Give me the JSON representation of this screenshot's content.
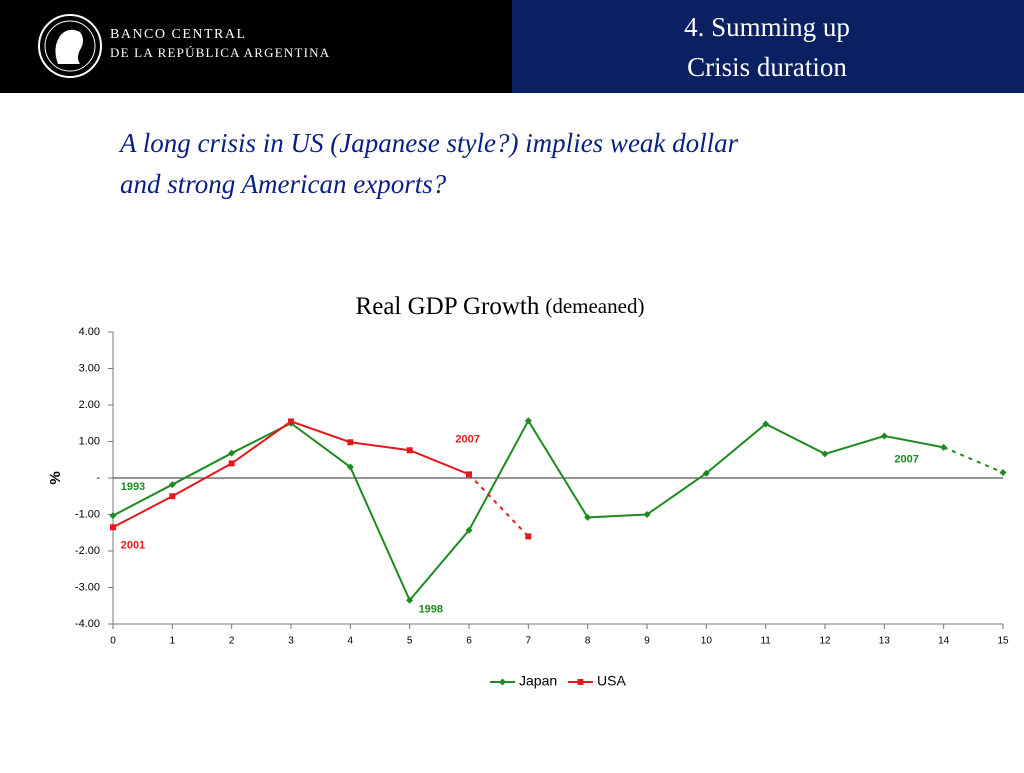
{
  "header": {
    "bank_line1": "BANCO CENTRAL",
    "bank_line2": "DE LA REPÚBLICA ARGENTINA",
    "section": "4. Summing up",
    "section_sub": "Crisis duration"
  },
  "lead": {
    "line1": "A long crisis in US (Japanese style?) implies weak dollar",
    "line2": "and strong American exports?"
  },
  "chart_data": {
    "type": "line",
    "title": "Real GDP Growth",
    "subtitle": "(demeaned)",
    "y_label": "%",
    "x": [
      0,
      1,
      2,
      3,
      4,
      5,
      6,
      7,
      8,
      9,
      10,
      11,
      12,
      13,
      14,
      15
    ],
    "xlim": [
      0,
      15
    ],
    "xticks": [
      0,
      1,
      2,
      3,
      4,
      5,
      6,
      7,
      8,
      9,
      10,
      11,
      12,
      13,
      14,
      15
    ],
    "ylim": [
      -4,
      4
    ],
    "yticks": [
      {
        "value": 4,
        "label": "4.00"
      },
      {
        "value": 3,
        "label": "3.00"
      },
      {
        "value": 2,
        "label": "2.00"
      },
      {
        "value": 1,
        "label": "1.00"
      },
      {
        "value": 0,
        "label": "-"
      },
      {
        "value": -1,
        "label": "-1.00"
      },
      {
        "value": -2,
        "label": "-2.00"
      },
      {
        "value": -3,
        "label": "-3.00"
      },
      {
        "value": -4,
        "label": "-4.00"
      }
    ],
    "series": [
      {
        "name": "Japan",
        "color": "#1f8a1f",
        "marker": "diamond",
        "dashed_from": 14,
        "values": [
          -1.03,
          -0.18,
          0.68,
          1.5,
          0.3,
          -3.35,
          -1.43,
          1.57,
          -1.08,
          -1.0,
          0.13,
          1.48,
          0.66,
          1.15,
          0.84,
          0.15
        ]
      },
      {
        "name": "USA",
        "color": "#e3191c",
        "marker": "square",
        "dashed_from": 6,
        "values": [
          -1.35,
          -0.5,
          0.4,
          1.55,
          0.98,
          0.76,
          0.1,
          -1.6,
          null,
          null,
          null,
          null,
          null,
          null,
          null,
          null
        ]
      }
    ],
    "annotations": [
      {
        "text": "1993",
        "series": 0,
        "x": 0.13,
        "y": -0.25
      },
      {
        "text": "2001",
        "series": 1,
        "x": 0.13,
        "y": -1.85
      },
      {
        "text": "1998",
        "series": 0,
        "x": 5.15,
        "y": -3.6
      },
      {
        "text": "2007",
        "series": 1,
        "x": 5.77,
        "y": 1.05
      },
      {
        "text": "2007",
        "series": 0,
        "x": 13.17,
        "y": 0.5
      }
    ],
    "legend": "bottom"
  }
}
